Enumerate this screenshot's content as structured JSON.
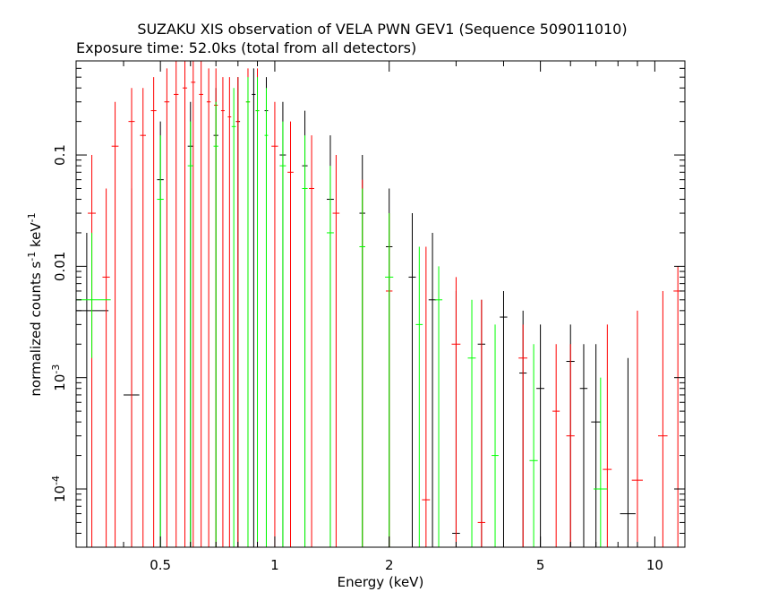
{
  "chart_data": {
    "type": "scatter",
    "title": "SUZAKU XIS observation of VELA PWN GEV1 (Sequence 509011010)",
    "subtitle": "Exposure time: 52.0ks (total from all detectors)",
    "xlabel": "Energy (keV)",
    "ylabel_main": "normalized counts s",
    "ylabel_sup1": "-1",
    "ylabel_mid": " keV",
    "ylabel_sup2": "-1",
    "x_scale": "log",
    "y_scale": "log",
    "xlim": [
      0.3,
      12
    ],
    "ylim": [
      3e-05,
      0.7
    ],
    "x_ticks": [
      {
        "value": 0.5,
        "label": "0.5"
      },
      {
        "value": 1,
        "label": "1"
      },
      {
        "value": 2,
        "label": "2"
      },
      {
        "value": 5,
        "label": "5"
      },
      {
        "value": 10,
        "label": "10"
      }
    ],
    "y_ticks": [
      {
        "value": 0.0001,
        "base": "10",
        "exp": "-4"
      },
      {
        "value": 0.001,
        "base": "10",
        "exp": "-3"
      },
      {
        "value": 0.01,
        "label": "0.01"
      },
      {
        "value": 0.1,
        "label": "0.1"
      }
    ],
    "grid": false,
    "colors": {
      "black": "#000000",
      "red": "#ff0000",
      "green": "#00ff00"
    },
    "series": [
      {
        "color": "black",
        "points": [
          {
            "x": 0.32,
            "xerr": 0.045,
            "y": 0.004,
            "ylo": 3e-05,
            "yhi": 0.02
          },
          {
            "x": 0.42,
            "xerr": 0.02,
            "y": 0.0007,
            "ylo": 3e-05,
            "yhi": 0.05
          },
          {
            "x": 0.5,
            "xerr": 0.01,
            "y": 0.06,
            "ylo": 3e-05,
            "yhi": 0.2
          },
          {
            "x": 0.6,
            "xerr": 0.01,
            "y": 0.12,
            "ylo": 3e-05,
            "yhi": 0.3
          },
          {
            "x": 0.7,
            "xerr": 0.01,
            "y": 0.15,
            "ylo": 3e-05,
            "yhi": 0.4
          },
          {
            "x": 0.8,
            "xerr": 0.01,
            "y": 0.2,
            "ylo": 3e-05,
            "yhi": 0.5
          },
          {
            "x": 0.88,
            "xerr": 0.01,
            "y": 0.35,
            "ylo": 3e-05,
            "yhi": 0.6
          },
          {
            "x": 0.95,
            "xerr": 0.01,
            "y": 0.25,
            "ylo": 3e-05,
            "yhi": 0.5
          },
          {
            "x": 1.05,
            "xerr": 0.02,
            "y": 0.1,
            "ylo": 3e-05,
            "yhi": 0.3
          },
          {
            "x": 1.2,
            "xerr": 0.02,
            "y": 0.08,
            "ylo": 3e-05,
            "yhi": 0.25
          },
          {
            "x": 1.4,
            "xerr": 0.03,
            "y": 0.04,
            "ylo": 3e-05,
            "yhi": 0.15
          },
          {
            "x": 1.7,
            "xerr": 0.03,
            "y": 0.03,
            "ylo": 3e-05,
            "yhi": 0.1
          },
          {
            "x": 2.0,
            "xerr": 0.04,
            "y": 0.015,
            "ylo": 3e-05,
            "yhi": 0.05
          },
          {
            "x": 2.3,
            "xerr": 0.05,
            "y": 0.008,
            "ylo": 3e-05,
            "yhi": 0.03
          },
          {
            "x": 2.6,
            "xerr": 0.06,
            "y": 0.005,
            "ylo": 3e-05,
            "yhi": 0.02
          },
          {
            "x": 3.0,
            "xerr": 0.07,
            "y": 4e-05,
            "ylo": 3e-05,
            "yhi": 0.006
          },
          {
            "x": 3.5,
            "xerr": 0.08,
            "y": 0.002,
            "ylo": 3e-05,
            "yhi": 0.005
          },
          {
            "x": 4.0,
            "xerr": 0.09,
            "y": 0.0035,
            "ylo": 3e-05,
            "yhi": 0.006
          },
          {
            "x": 4.5,
            "xerr": 0.1,
            "y": 0.0011,
            "ylo": 3e-05,
            "yhi": 0.004
          },
          {
            "x": 5.0,
            "xerr": 0.12,
            "y": 0.0008,
            "ylo": 3e-05,
            "yhi": 0.003
          },
          {
            "x": 6.0,
            "xerr": 0.15,
            "y": 0.0014,
            "ylo": 3e-05,
            "yhi": 0.003
          },
          {
            "x": 6.5,
            "xerr": 0.15,
            "y": 0.0008,
            "ylo": 3e-05,
            "yhi": 0.002
          },
          {
            "x": 7.0,
            "xerr": 0.2,
            "y": 0.0004,
            "ylo": 3e-05,
            "yhi": 0.002
          },
          {
            "x": 8.5,
            "xerr": 0.4,
            "y": 6e-05,
            "ylo": 3e-05,
            "yhi": 0.0015
          }
        ]
      },
      {
        "color": "red",
        "points": [
          {
            "x": 0.33,
            "xerr": 0.008,
            "y": 0.03,
            "ylo": 3e-05,
            "yhi": 0.1
          },
          {
            "x": 0.36,
            "xerr": 0.008,
            "y": 0.008,
            "ylo": 3e-05,
            "yhi": 0.05
          },
          {
            "x": 0.38,
            "xerr": 0.008,
            "y": 0.12,
            "ylo": 3e-05,
            "yhi": 0.3
          },
          {
            "x": 0.42,
            "xerr": 0.008,
            "y": 0.2,
            "ylo": 3e-05,
            "yhi": 0.4
          },
          {
            "x": 0.45,
            "xerr": 0.008,
            "y": 0.15,
            "ylo": 3e-05,
            "yhi": 0.4
          },
          {
            "x": 0.48,
            "xerr": 0.008,
            "y": 0.25,
            "ylo": 3e-05,
            "yhi": 0.5
          },
          {
            "x": 0.52,
            "xerr": 0.008,
            "y": 0.3,
            "ylo": 3e-05,
            "yhi": 0.6
          },
          {
            "x": 0.55,
            "xerr": 0.008,
            "y": 0.35,
            "ylo": 3e-05,
            "yhi": 0.7
          },
          {
            "x": 0.58,
            "xerr": 0.008,
            "y": 0.4,
            "ylo": 3e-05,
            "yhi": 0.7
          },
          {
            "x": 0.61,
            "xerr": 0.008,
            "y": 0.45,
            "ylo": 3e-05,
            "yhi": 0.7
          },
          {
            "x": 0.64,
            "xerr": 0.008,
            "y": 0.35,
            "ylo": 3e-05,
            "yhi": 0.7
          },
          {
            "x": 0.67,
            "xerr": 0.008,
            "y": 0.3,
            "ylo": 3e-05,
            "yhi": 0.6
          },
          {
            "x": 0.7,
            "xerr": 0.008,
            "y": 0.28,
            "ylo": 3e-05,
            "yhi": 0.6
          },
          {
            "x": 0.73,
            "xerr": 0.008,
            "y": 0.25,
            "ylo": 3e-05,
            "yhi": 0.5
          },
          {
            "x": 0.76,
            "xerr": 0.008,
            "y": 0.22,
            "ylo": 3e-05,
            "yhi": 0.5
          },
          {
            "x": 0.8,
            "xerr": 0.008,
            "y": 0.2,
            "ylo": 3e-05,
            "yhi": 0.5
          },
          {
            "x": 0.85,
            "xerr": 0.01,
            "y": 0.3,
            "ylo": 3e-05,
            "yhi": 0.6
          },
          {
            "x": 0.9,
            "xerr": 0.01,
            "y": 0.25,
            "ylo": 3e-05,
            "yhi": 0.6
          },
          {
            "x": 1.0,
            "xerr": 0.02,
            "y": 0.12,
            "ylo": 3e-05,
            "yhi": 0.3
          },
          {
            "x": 1.1,
            "xerr": 0.02,
            "y": 0.07,
            "ylo": 3e-05,
            "yhi": 0.2
          },
          {
            "x": 1.25,
            "xerr": 0.02,
            "y": 0.05,
            "ylo": 3e-05,
            "yhi": 0.15
          },
          {
            "x": 1.45,
            "xerr": 0.03,
            "y": 0.03,
            "ylo": 3e-05,
            "yhi": 0.1
          },
          {
            "x": 1.7,
            "xerr": 0.03,
            "y": 0.015,
            "ylo": 3e-05,
            "yhi": 0.06
          },
          {
            "x": 2.0,
            "xerr": 0.04,
            "y": 0.006,
            "ylo": 3e-05,
            "yhi": 0.03
          },
          {
            "x": 2.5,
            "xerr": 0.06,
            "y": 8e-05,
            "ylo": 3e-05,
            "yhi": 0.015
          },
          {
            "x": 3.0,
            "xerr": 0.08,
            "y": 0.002,
            "ylo": 3e-05,
            "yhi": 0.008
          },
          {
            "x": 3.5,
            "xerr": 0.08,
            "y": 5e-05,
            "ylo": 3e-05,
            "yhi": 0.005
          },
          {
            "x": 4.5,
            "xerr": 0.12,
            "y": 0.0015,
            "ylo": 3e-05,
            "yhi": 0.003
          },
          {
            "x": 5.5,
            "xerr": 0.12,
            "y": 0.0005,
            "ylo": 3e-05,
            "yhi": 0.002
          },
          {
            "x": 6.0,
            "xerr": 0.15,
            "y": 0.0003,
            "ylo": 3e-05,
            "yhi": 0.002
          },
          {
            "x": 7.5,
            "xerr": 0.2,
            "y": 0.00015,
            "ylo": 3e-05,
            "yhi": 0.003
          },
          {
            "x": 9.0,
            "xerr": 0.3,
            "y": 0.00012,
            "ylo": 3e-05,
            "yhi": 0.004
          },
          {
            "x": 10.5,
            "xerr": 0.3,
            "y": 0.0003,
            "ylo": 3e-05,
            "yhi": 0.006
          },
          {
            "x": 11.5,
            "xerr": 0.3,
            "y": 0.006,
            "ylo": 3e-05,
            "yhi": 0.01
          }
        ]
      },
      {
        "color": "green",
        "points": [
          {
            "x": 0.33,
            "xerr": 0.04,
            "y": 0.005,
            "ylo": 0.0015,
            "yhi": 0.02
          },
          {
            "x": 0.5,
            "xerr": 0.01,
            "y": 0.04,
            "ylo": 3e-05,
            "yhi": 0.15
          },
          {
            "x": 0.6,
            "xerr": 0.01,
            "y": 0.08,
            "ylo": 3e-05,
            "yhi": 0.2
          },
          {
            "x": 0.7,
            "xerr": 0.01,
            "y": 0.12,
            "ylo": 3e-05,
            "yhi": 0.3
          },
          {
            "x": 0.78,
            "xerr": 0.01,
            "y": 0.18,
            "ylo": 3e-05,
            "yhi": 0.4
          },
          {
            "x": 0.85,
            "xerr": 0.01,
            "y": 0.3,
            "ylo": 3e-05,
            "yhi": 0.5
          },
          {
            "x": 0.9,
            "xerr": 0.01,
            "y": 0.25,
            "ylo": 3e-05,
            "yhi": 0.5
          },
          {
            "x": 0.95,
            "xerr": 0.01,
            "y": 0.15,
            "ylo": 3e-05,
            "yhi": 0.4
          },
          {
            "x": 1.05,
            "xerr": 0.02,
            "y": 0.08,
            "ylo": 3e-05,
            "yhi": 0.2
          },
          {
            "x": 1.2,
            "xerr": 0.02,
            "y": 0.05,
            "ylo": 3e-05,
            "yhi": 0.15
          },
          {
            "x": 1.4,
            "xerr": 0.03,
            "y": 0.02,
            "ylo": 3e-05,
            "yhi": 0.08
          },
          {
            "x": 1.7,
            "xerr": 0.03,
            "y": 0.015,
            "ylo": 3e-05,
            "yhi": 0.05
          },
          {
            "x": 2.0,
            "xerr": 0.05,
            "y": 0.008,
            "ylo": 3e-05,
            "yhi": 0.03
          },
          {
            "x": 2.4,
            "xerr": 0.05,
            "y": 0.003,
            "ylo": 3e-05,
            "yhi": 0.015
          },
          {
            "x": 2.7,
            "xerr": 0.06,
            "y": 0.005,
            "ylo": 3e-05,
            "yhi": 0.01
          },
          {
            "x": 3.3,
            "xerr": 0.08,
            "y": 0.0015,
            "ylo": 3e-05,
            "yhi": 0.005
          },
          {
            "x": 3.8,
            "xerr": 0.08,
            "y": 0.0002,
            "ylo": 3e-05,
            "yhi": 0.003
          },
          {
            "x": 4.8,
            "xerr": 0.12,
            "y": 0.00018,
            "ylo": 3e-05,
            "yhi": 0.002
          },
          {
            "x": 7.2,
            "xerr": 0.3,
            "y": 0.0001,
            "ylo": 3e-05,
            "yhi": 0.001
          }
        ]
      }
    ]
  }
}
